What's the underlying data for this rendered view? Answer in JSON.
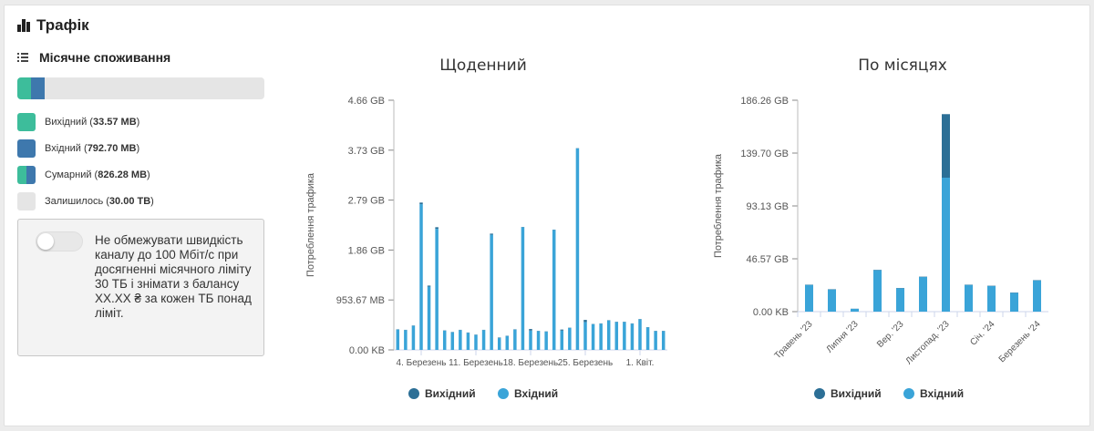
{
  "header": {
    "title": "Трафік",
    "icon": "bar-chart-icon"
  },
  "monthly": {
    "title": "Місячне споживання",
    "icon": "list-icon",
    "progress": {
      "outgoing_fraction": 0.054,
      "incoming_fraction": 0.054
    },
    "legend": [
      {
        "label": "Вихідний",
        "value": "33.57 MB",
        "color": "#3dbd9b"
      },
      {
        "label": "Вхідний",
        "value": "792.70 MB",
        "color": "#3e78ad"
      },
      {
        "label": "Сумарний",
        "value": "826.28 MB",
        "color": "split"
      },
      {
        "label": "Залишилось",
        "value": "30.00 TB",
        "color": "#e5e5e5"
      }
    ],
    "toggle": {
      "state": "off",
      "text": "Не обмежувати швидкість каналу до 100 Мбіт/с при досягненні місячного ліміту 30 ТБ і знімати з балансу ХХ.ХХ ₴ за кожен ТБ понад ліміт."
    }
  },
  "chart_data": [
    {
      "type": "bar",
      "title": "Щоденний",
      "ylabel": "Потреблення трафика",
      "yticks": [
        "0.00 KB",
        "953.67 MB",
        "1.86 GB",
        "2.79 GB",
        "3.73 GB",
        "4.66 GB"
      ],
      "ylim": [
        0,
        4.66
      ],
      "unit": "GB",
      "xtick_labels": [
        {
          "label": "4. Березень",
          "index": 3
        },
        {
          "label": "11. Березень",
          "index": 10
        },
        {
          "label": "18. Березень",
          "index": 17
        },
        {
          "label": "25. Березень",
          "index": 24
        },
        {
          "label": "1. Квіт.",
          "index": 31
        }
      ],
      "stacked": true,
      "series": [
        {
          "name": "Вихідний",
          "color": "#2c6f96",
          "values": [
            0.005,
            0.005,
            0.005,
            0.03,
            0.02,
            0.03,
            0.005,
            0.005,
            0.005,
            0.005,
            0.005,
            0.005,
            0.02,
            0.01,
            0.005,
            0.005,
            0.005,
            0.03,
            0.005,
            0.005,
            0.005,
            0.02,
            0.005,
            0.005,
            0.04,
            0.005,
            0.005,
            0.005,
            0.005,
            0.005,
            0.005,
            0.005,
            0.005,
            0.005,
            0.005
          ]
        },
        {
          "name": "Вхідний",
          "color": "#3aa4d8",
          "values": [
            0.38,
            0.37,
            0.45,
            2.72,
            1.18,
            2.26,
            0.36,
            0.33,
            0.37,
            0.32,
            0.28,
            0.37,
            2.15,
            0.22,
            0.26,
            0.38,
            2.29,
            0.36,
            0.35,
            0.34,
            2.24,
            0.36,
            0.41,
            3.76,
            0.52,
            0.48,
            0.49,
            0.55,
            0.52,
            0.52,
            0.49,
            0.57,
            0.42,
            0.35,
            0.35
          ]
        }
      ],
      "legend": [
        "Вихідний",
        "Вхідний"
      ],
      "legend_position": "bottom"
    },
    {
      "type": "bar",
      "title": "По місяцях",
      "ylabel": "Потреблення трафика",
      "yticks": [
        "0.00 KB",
        "46.57 GB",
        "93.13 GB",
        "139.70 GB",
        "186.26 GB"
      ],
      "ylim": [
        0,
        186.26
      ],
      "unit": "GB",
      "categories": [
        "Травень '23",
        "",
        "Липня '23",
        "",
        "Вер. '23",
        "",
        "Листопад. '23",
        "",
        "Січ. '24",
        "",
        "Березень '24"
      ],
      "stacked": true,
      "series": [
        {
          "name": "Вихідний",
          "color": "#2c6f96",
          "values": [
            0.3,
            0.3,
            0.1,
            0.3,
            0.3,
            0.3,
            56,
            0.3,
            0.3,
            0.3,
            0.3
          ]
        },
        {
          "name": "Вхідний",
          "color": "#3aa4d8",
          "values": [
            23.5,
            19.5,
            2.5,
            36.5,
            20.5,
            30.5,
            118,
            23.5,
            22.5,
            16.5,
            27.5
          ]
        }
      ],
      "legend": [
        "Вихідний",
        "Вхідний"
      ],
      "legend_position": "bottom"
    }
  ]
}
